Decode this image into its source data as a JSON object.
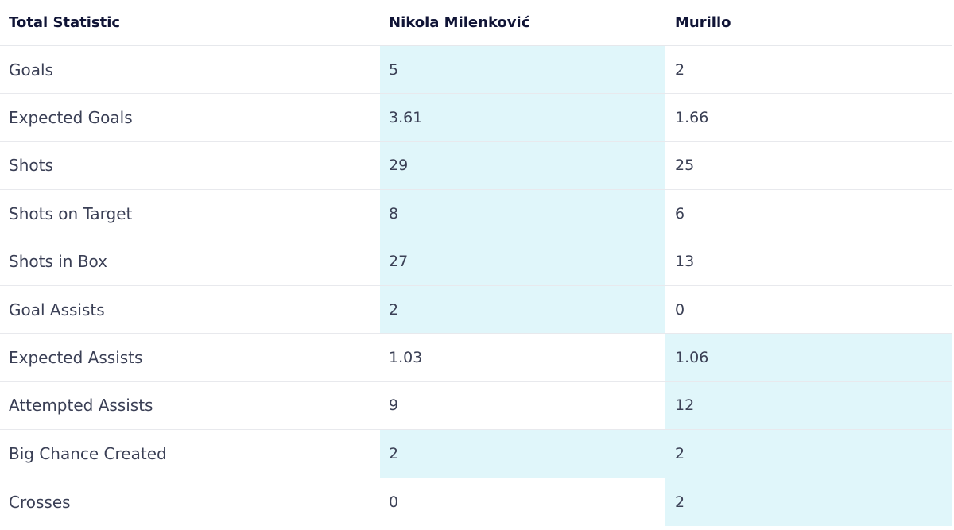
{
  "table": {
    "headers": {
      "statistic": "Total Statistic",
      "player1": "Nikola Milenković",
      "player2": "Murillo"
    },
    "highlight_color": "#e0f6fa",
    "rows": [
      {
        "label": "Goals",
        "p1": "5",
        "p2": "2",
        "better": "p1"
      },
      {
        "label": "Expected Goals",
        "p1": "3.61",
        "p2": "1.66",
        "better": "p1"
      },
      {
        "label": "Shots",
        "p1": "29",
        "p2": "25",
        "better": "p1"
      },
      {
        "label": "Shots on Target",
        "p1": "8",
        "p2": "6",
        "better": "p1"
      },
      {
        "label": "Shots in Box",
        "p1": "27",
        "p2": "13",
        "better": "p1"
      },
      {
        "label": "Goal Assists",
        "p1": "2",
        "p2": "0",
        "better": "p1"
      },
      {
        "label": "Expected Assists",
        "p1": "1.03",
        "p2": "1.06",
        "better": "p2"
      },
      {
        "label": "Attempted Assists",
        "p1": "9",
        "p2": "12",
        "better": "p2"
      },
      {
        "label": "Big Chance Created",
        "p1": "2",
        "p2": "2",
        "better": "both"
      },
      {
        "label": "Crosses",
        "p1": "0",
        "p2": "2",
        "better": "p2"
      }
    ]
  }
}
